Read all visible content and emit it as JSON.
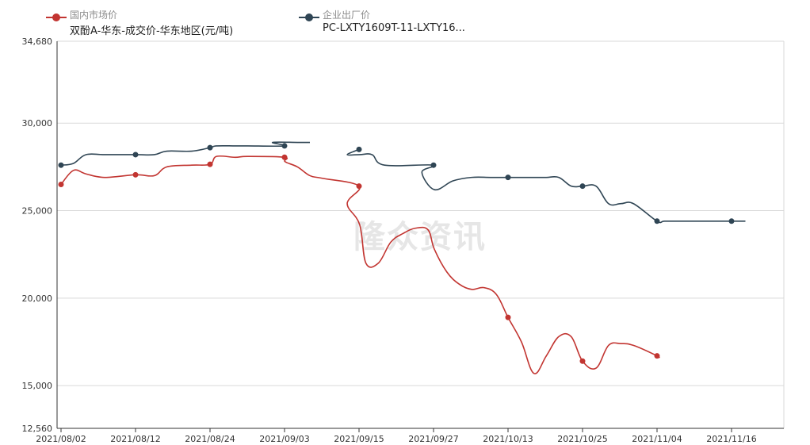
{
  "legend": [
    {
      "line1": "国内市场价",
      "line2": "双酚A-华东-成交价-华东地区(元/吨)",
      "color": "#c23531"
    },
    {
      "line1": "企业出厂价",
      "line2": "PC-LXTY1609T-11-LXTY16...",
      "color": "#2f4554"
    }
  ],
  "watermark": "隆众资讯",
  "chart_data": {
    "type": "line",
    "x_tick_labels": [
      "2021/08/02",
      "2021/08/12",
      "2021/08/24",
      "2021/09/03",
      "2021/09/15",
      "2021/09/27",
      "2021/10/13",
      "2021/10/25",
      "2021/11/04",
      "2021/11/16"
    ],
    "y_tick_labels": [
      "34,680",
      "30,000",
      "25,000",
      "20,000",
      "15,000",
      "12,560"
    ],
    "ylim": [
      12560,
      34680
    ],
    "grid": true,
    "legend_position": "top-left",
    "series": [
      {
        "name": "双酚A-华东-成交价-华东地区(元/吨)",
        "color": "#c23531",
        "points": [
          [
            "2021/08/02",
            26500
          ],
          [
            "2021/08/04",
            27300
          ],
          [
            "2021/08/06",
            27100
          ],
          [
            "2021/08/09",
            26900
          ],
          [
            "2021/08/12",
            27050
          ],
          [
            "2021/08/17",
            27000
          ],
          [
            "2021/08/19",
            27500
          ],
          [
            "2021/08/23",
            27600
          ],
          [
            "2021/08/24",
            27650
          ],
          [
            "2021/08/27",
            28100
          ],
          [
            "2021/08/30",
            28050
          ],
          [
            "2021/09/01",
            28100
          ],
          [
            "2021/09/03",
            28050
          ],
          [
            "2021/09/07",
            27800
          ],
          [
            "2021/09/09",
            27500
          ],
          [
            "2021/09/11",
            27000
          ],
          [
            "2021/09/13",
            26850
          ],
          [
            "2021/09/15",
            26400
          ],
          [
            "2021/09/17",
            25400
          ],
          [
            "2021/09/19",
            24200
          ],
          [
            "2021/09/20",
            22000
          ],
          [
            "2021/09/22",
            22000
          ],
          [
            "2021/09/24",
            23200
          ],
          [
            "2021/09/26",
            23700
          ],
          [
            "2021/09/28",
            24000
          ],
          [
            "2021/09/30",
            23900
          ],
          [
            "2021/10/01",
            22800
          ],
          [
            "2021/10/03",
            21500
          ],
          [
            "2021/10/05",
            20800
          ],
          [
            "2021/10/07",
            20500
          ],
          [
            "2021/10/09",
            20600
          ],
          [
            "2021/10/11",
            20200
          ],
          [
            "2021/10/13",
            18900
          ],
          [
            "2021/10/15",
            17500
          ],
          [
            "2021/10/17",
            15700
          ],
          [
            "2021/10/19",
            16700
          ],
          [
            "2021/10/21",
            17800
          ],
          [
            "2021/10/23",
            17800
          ],
          [
            "2021/10/25",
            16400
          ],
          [
            "2021/10/27",
            16000
          ],
          [
            "2021/10/29",
            17300
          ],
          [
            "2021/10/31",
            17400
          ],
          [
            "2021/11/02",
            17300
          ],
          [
            "2021/11/04",
            16700
          ],
          [
            "2021/11/06",
            16600
          ]
        ]
      },
      {
        "name": "PC-LXTY1609T-11-LXTY16...",
        "color": "#2f4554",
        "segments": [
          [
            [
              "2021/08/02",
              27600
            ],
            [
              "2021/08/04",
              27700
            ],
            [
              "2021/08/06",
              28200
            ],
            [
              "2021/08/09",
              28200
            ],
            [
              "2021/08/12",
              28200
            ],
            [
              "2021/08/17",
              28200
            ],
            [
              "2021/08/19",
              28400
            ],
            [
              "2021/08/23",
              28400
            ],
            [
              "2021/08/24",
              28600
            ],
            [
              "2021/08/27",
              28700
            ],
            [
              "2021/08/30",
              28700
            ],
            [
              "2021/09/01",
              28700
            ],
            [
              "2021/09/03",
              28700
            ],
            [
              "2021/09/05",
              28900
            ],
            [
              "2021/09/09",
              28900
            ],
            [
              "2021/09/11",
              28900
            ]
          ],
          [
            [
              "2021/09/15",
              28500
            ],
            [
              "2021/09/17",
              28200
            ],
            [
              "2021/09/19",
              28200
            ],
            [
              "2021/09/21",
              28200
            ],
            [
              "2021/09/23",
              27600
            ],
            [
              "2021/09/27",
              27600
            ],
            [
              "2021/09/29",
              27200
            ],
            [
              "2021/10/01",
              26200
            ],
            [
              "2021/10/04",
              26700
            ],
            [
              "2021/10/07",
              26900
            ],
            [
              "2021/10/10",
              26900
            ],
            [
              "2021/10/13",
              26900
            ],
            [
              "2021/10/17",
              26900
            ],
            [
              "2021/10/19",
              26900
            ],
            [
              "2021/10/21",
              26900
            ],
            [
              "2021/10/23",
              26400
            ],
            [
              "2021/10/25",
              26400
            ],
            [
              "2021/10/27",
              26400
            ],
            [
              "2021/10/29",
              25400
            ],
            [
              "2021/10/31",
              25400
            ],
            [
              "2021/11/02",
              25400
            ],
            [
              "2021/11/04",
              24400
            ],
            [
              "2021/11/07",
              24400
            ],
            [
              "2021/11/10",
              24400
            ],
            [
              "2021/11/13",
              24400
            ],
            [
              "2021/11/16",
              24400
            ],
            [
              "2021/11/20",
              24400
            ]
          ]
        ]
      }
    ]
  }
}
